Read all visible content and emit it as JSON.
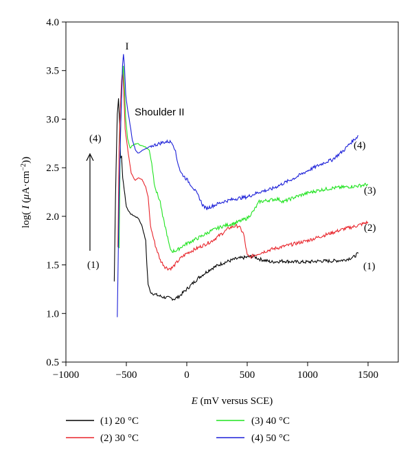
{
  "chart_data": {
    "type": "line",
    "xlabel_italic": "E",
    "xlabel_rest": " (mV versus SCE)",
    "ylabel_parts": [
      "log( ",
      "I",
      " (",
      "μ",
      "A·cm",
      "−2",
      "))"
    ],
    "xlim": [
      -1000,
      1750
    ],
    "ylim": [
      0.5,
      4.0
    ],
    "x_ticks": [
      -1000,
      -500,
      0,
      500,
      1000,
      1500
    ],
    "x_tick_labels": [
      "−1000",
      "−500",
      "0",
      "500",
      "1000",
      "1500"
    ],
    "y_ticks": [
      0.5,
      1.0,
      1.5,
      2.0,
      2.5,
      3.0,
      3.5,
      4.0
    ],
    "y_tick_labels": [
      "0.5",
      "1.0",
      "1.5",
      "2.0",
      "2.5",
      "3.0",
      "3.5",
      "4.0"
    ],
    "grid": false,
    "legend_position": "bottom",
    "series": [
      {
        "name": "(1) 20 °C",
        "color": "#000000",
        "tag": "(1)",
        "points": [
          [
            -600,
            1.33
          ],
          [
            -590,
            2.2
          ],
          [
            -575,
            3.05
          ],
          [
            -565,
            3.21
          ],
          [
            -555,
            2.95
          ],
          [
            -548,
            2.6
          ],
          [
            -540,
            2.62
          ],
          [
            -530,
            2.4
          ],
          [
            -500,
            2.1
          ],
          [
            -470,
            2.03
          ],
          [
            -430,
            2.0
          ],
          [
            -400,
            1.98
          ],
          [
            -370,
            1.9
          ],
          [
            -340,
            1.75
          ],
          [
            -330,
            1.5
          ],
          [
            -320,
            1.3
          ],
          [
            -300,
            1.22
          ],
          [
            -250,
            1.19
          ],
          [
            -200,
            1.17
          ],
          [
            -150,
            1.16
          ],
          [
            -100,
            1.15
          ],
          [
            -60,
            1.18
          ],
          [
            0,
            1.25
          ],
          [
            100,
            1.37
          ],
          [
            200,
            1.46
          ],
          [
            300,
            1.52
          ],
          [
            400,
            1.56
          ],
          [
            500,
            1.58
          ],
          [
            550,
            1.59
          ],
          [
            600,
            1.56
          ],
          [
            700,
            1.53
          ],
          [
            800,
            1.54
          ],
          [
            900,
            1.53
          ],
          [
            1000,
            1.53
          ],
          [
            1100,
            1.54
          ],
          [
            1200,
            1.54
          ],
          [
            1300,
            1.55
          ],
          [
            1380,
            1.58
          ],
          [
            1420,
            1.62
          ]
        ]
      },
      {
        "name": "(2) 30 °C",
        "color": "#e8232a",
        "tag": "(2)",
        "points": [
          [
            -570,
            1.68
          ],
          [
            -560,
            2.7
          ],
          [
            -550,
            3.1
          ],
          [
            -540,
            3.4
          ],
          [
            -530,
            3.5
          ],
          [
            -522,
            3.3
          ],
          [
            -510,
            2.9
          ],
          [
            -490,
            2.7
          ],
          [
            -460,
            2.45
          ],
          [
            -430,
            2.37
          ],
          [
            -400,
            2.4
          ],
          [
            -370,
            2.38
          ],
          [
            -340,
            2.3
          ],
          [
            -320,
            2.2
          ],
          [
            -300,
            1.9
          ],
          [
            -280,
            1.8
          ],
          [
            -260,
            1.7
          ],
          [
            -220,
            1.55
          ],
          [
            -180,
            1.48
          ],
          [
            -150,
            1.46
          ],
          [
            -120,
            1.47
          ],
          [
            -100,
            1.5
          ],
          [
            -50,
            1.57
          ],
          [
            0,
            1.62
          ],
          [
            100,
            1.68
          ],
          [
            200,
            1.74
          ],
          [
            300,
            1.83
          ],
          [
            350,
            1.88
          ],
          [
            400,
            1.9
          ],
          [
            430,
            1.9
          ],
          [
            470,
            1.82
          ],
          [
            500,
            1.6
          ],
          [
            520,
            1.58
          ],
          [
            600,
            1.62
          ],
          [
            700,
            1.66
          ],
          [
            800,
            1.69
          ],
          [
            900,
            1.72
          ],
          [
            1000,
            1.75
          ],
          [
            1100,
            1.79
          ],
          [
            1200,
            1.83
          ],
          [
            1300,
            1.87
          ],
          [
            1400,
            1.9
          ],
          [
            1500,
            1.94
          ]
        ]
      },
      {
        "name": "(3) 40 °C",
        "color": "#1ee31e",
        "tag": "(3)",
        "points": [
          [
            -560,
            1.67
          ],
          [
            -550,
            2.8
          ],
          [
            -535,
            3.4
          ],
          [
            -525,
            3.55
          ],
          [
            -515,
            3.3
          ],
          [
            -505,
            3.0
          ],
          [
            -490,
            2.8
          ],
          [
            -470,
            2.7
          ],
          [
            -440,
            2.74
          ],
          [
            -410,
            2.75
          ],
          [
            -380,
            2.73
          ],
          [
            -350,
            2.72
          ],
          [
            -330,
            2.7
          ],
          [
            -310,
            2.68
          ],
          [
            -290,
            2.55
          ],
          [
            -270,
            2.35
          ],
          [
            -250,
            2.25
          ],
          [
            -220,
            2.15
          ],
          [
            -200,
            2.0
          ],
          [
            -170,
            1.85
          ],
          [
            -140,
            1.67
          ],
          [
            -120,
            1.64
          ],
          [
            -80,
            1.65
          ],
          [
            -40,
            1.69
          ],
          [
            0,
            1.72
          ],
          [
            100,
            1.78
          ],
          [
            200,
            1.85
          ],
          [
            300,
            1.9
          ],
          [
            400,
            1.93
          ],
          [
            500,
            1.98
          ],
          [
            550,
            2.05
          ],
          [
            600,
            2.15
          ],
          [
            700,
            2.17
          ],
          [
            750,
            2.18
          ],
          [
            800,
            2.15
          ],
          [
            900,
            2.2
          ],
          [
            1000,
            2.24
          ],
          [
            1100,
            2.27
          ],
          [
            1200,
            2.29
          ],
          [
            1300,
            2.3
          ],
          [
            1400,
            2.31
          ],
          [
            1500,
            2.33
          ]
        ]
      },
      {
        "name": "(4) 50 °C",
        "color": "#1b1fd8",
        "tag": "(4)",
        "points": [
          [
            -575,
            0.96
          ],
          [
            -568,
            1.5
          ],
          [
            -560,
            2.2
          ],
          [
            -545,
            3.0
          ],
          [
            -532,
            3.55
          ],
          [
            -524,
            3.67
          ],
          [
            -516,
            3.55
          ],
          [
            -505,
            3.25
          ],
          [
            -490,
            3.1
          ],
          [
            -470,
            2.95
          ],
          [
            -450,
            2.78
          ],
          [
            -420,
            2.67
          ],
          [
            -400,
            2.65
          ],
          [
            -380,
            2.67
          ],
          [
            -330,
            2.7
          ],
          [
            -300,
            2.72
          ],
          [
            -250,
            2.74
          ],
          [
            -200,
            2.76
          ],
          [
            -150,
            2.77
          ],
          [
            -120,
            2.76
          ],
          [
            -100,
            2.7
          ],
          [
            -80,
            2.58
          ],
          [
            -50,
            2.45
          ],
          [
            0,
            2.38
          ],
          [
            50,
            2.3
          ],
          [
            100,
            2.2
          ],
          [
            130,
            2.12
          ],
          [
            160,
            2.08
          ],
          [
            200,
            2.1
          ],
          [
            300,
            2.15
          ],
          [
            400,
            2.18
          ],
          [
            500,
            2.2
          ],
          [
            600,
            2.25
          ],
          [
            700,
            2.28
          ],
          [
            800,
            2.34
          ],
          [
            900,
            2.4
          ],
          [
            1000,
            2.47
          ],
          [
            1100,
            2.53
          ],
          [
            1150,
            2.56
          ],
          [
            1200,
            2.58
          ],
          [
            1250,
            2.63
          ],
          [
            1300,
            2.68
          ],
          [
            1350,
            2.75
          ],
          [
            1420,
            2.83
          ]
        ]
      }
    ],
    "annotations": {
      "peak_I": "I",
      "shoulder": "Shoulder II",
      "arrow_top_label": "(4)",
      "arrow_bottom_label": "(1)"
    },
    "legend": [
      {
        "label": "(1) 20 °C",
        "color": "#000000"
      },
      {
        "label": "(2) 30 °C",
        "color": "#e8232a"
      },
      {
        "label": "(3) 40 °C",
        "color": "#1ee31e"
      },
      {
        "label": "(4) 50 °C",
        "color": "#1b1fd8"
      }
    ]
  }
}
